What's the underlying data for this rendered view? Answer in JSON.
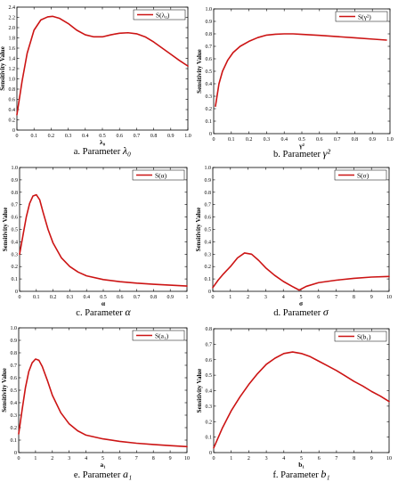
{
  "y_axis_label": "Sensitivity Value",
  "curve_color": "#cc1414",
  "chart_data": [
    {
      "type": "line",
      "caption_prefix": "a. Parameter",
      "caption_symbol": "λ₀",
      "xlabel": "λ₀",
      "legend": "S(λ₀)",
      "xlim": [
        0,
        1
      ],
      "ylim": [
        0,
        2.4
      ],
      "xticks": [
        0,
        0.1,
        0.2,
        0.3,
        0.4,
        0.5,
        0.6,
        0.7,
        0.8,
        0.9,
        1.0
      ],
      "xtick_labels": [
        "0",
        "0.1",
        "0.2",
        "0.3",
        "0.4",
        "0.5",
        "0.6",
        "0.7",
        "0.8",
        "0.9",
        "1.0"
      ],
      "yticks": [
        0,
        0.2,
        0.4,
        0.6,
        0.8,
        1.0,
        1.2,
        1.4,
        1.6,
        1.8,
        2.0,
        2.2,
        2.4
      ],
      "ytick_labels": [
        "0",
        "0.2",
        "0.4",
        "0.6",
        "0.8",
        "1.0",
        "1.2",
        "1.4",
        "1.6",
        "1.8",
        "2.0",
        "2.2",
        "2.4"
      ],
      "series": [
        {
          "x": [
            0.0,
            0.03,
            0.06,
            0.1,
            0.14,
            0.18,
            0.21,
            0.25,
            0.3,
            0.35,
            0.4,
            0.45,
            0.5,
            0.55,
            0.6,
            0.65,
            0.7,
            0.75,
            0.8,
            0.85,
            0.9,
            0.95,
            1.0
          ],
          "y": [
            0.3,
            0.95,
            1.5,
            1.95,
            2.15,
            2.21,
            2.22,
            2.18,
            2.08,
            1.95,
            1.86,
            1.82,
            1.82,
            1.86,
            1.89,
            1.9,
            1.88,
            1.82,
            1.72,
            1.6,
            1.48,
            1.36,
            1.25
          ]
        }
      ]
    },
    {
      "type": "line",
      "caption_prefix": "b. Parameter",
      "caption_symbol": "γ²",
      "xlabel": "γ²",
      "legend": "S(γ²)",
      "xlim": [
        0,
        1
      ],
      "ylim": [
        0,
        1.0
      ],
      "xticks": [
        0,
        0.1,
        0.2,
        0.3,
        0.4,
        0.5,
        0.6,
        0.7,
        0.8,
        0.9,
        1.0
      ],
      "xtick_labels": [
        "0",
        "0.1",
        "0.2",
        "0.3",
        "0.4",
        "0.5",
        "0.6",
        "0.7",
        "0.8",
        "0.9",
        "1.0"
      ],
      "yticks": [
        0,
        0.1,
        0.2,
        0.3,
        0.4,
        0.5,
        0.6,
        0.7,
        0.8,
        0.9,
        1.0
      ],
      "ytick_labels": [
        "0",
        "0.1",
        "0.2",
        "0.3",
        "0.4",
        "0.5",
        "0.6",
        "0.7",
        "0.8",
        "0.9",
        "1.0"
      ],
      "series": [
        {
          "x": [
            0.01,
            0.03,
            0.05,
            0.08,
            0.11,
            0.15,
            0.2,
            0.25,
            0.3,
            0.35,
            0.4,
            0.45,
            0.5,
            0.6,
            0.7,
            0.8,
            0.9,
            0.98
          ],
          "y": [
            0.22,
            0.4,
            0.5,
            0.59,
            0.65,
            0.7,
            0.74,
            0.77,
            0.79,
            0.797,
            0.8,
            0.8,
            0.796,
            0.788,
            0.778,
            0.768,
            0.758,
            0.75
          ]
        }
      ]
    },
    {
      "type": "line",
      "caption_prefix": "c. Parameter",
      "caption_symbol": "α",
      "xlabel": "α",
      "legend": "S(α)",
      "xlim": [
        0,
        1
      ],
      "ylim": [
        0,
        1.0
      ],
      "xticks": [
        0,
        0.1,
        0.2,
        0.3,
        0.4,
        0.5,
        0.6,
        0.7,
        0.8,
        0.9,
        1
      ],
      "xtick_labels": [
        "0",
        "0.1",
        "0.2",
        "0.3",
        "0.4",
        "0.5",
        "0.6",
        "0.7",
        "0.8",
        "0.9",
        "1"
      ],
      "yticks": [
        0,
        0.1,
        0.2,
        0.3,
        0.4,
        0.5,
        0.6,
        0.7,
        0.8,
        0.9,
        1.0
      ],
      "ytick_labels": [
        "0",
        "0.1",
        "0.2",
        "0.3",
        "0.4",
        "0.5",
        "0.6",
        "0.7",
        "0.8",
        "0.9",
        "1.0"
      ],
      "series": [
        {
          "x": [
            0.0,
            0.02,
            0.04,
            0.06,
            0.08,
            0.1,
            0.12,
            0.14,
            0.17,
            0.2,
            0.25,
            0.3,
            0.35,
            0.4,
            0.5,
            0.6,
            0.7,
            0.8,
            0.9,
            1.0
          ],
          "y": [
            0.3,
            0.45,
            0.6,
            0.71,
            0.77,
            0.78,
            0.74,
            0.64,
            0.5,
            0.39,
            0.27,
            0.2,
            0.155,
            0.125,
            0.095,
            0.078,
            0.066,
            0.057,
            0.05,
            0.043
          ]
        }
      ]
    },
    {
      "type": "line",
      "caption_prefix": "d. Parameter",
      "caption_symbol": "σ",
      "xlabel": "σ",
      "legend": "S(σ)",
      "xlim": [
        0,
        10
      ],
      "ylim": [
        0,
        1.0
      ],
      "xticks": [
        0,
        1,
        2,
        3,
        4,
        5,
        6,
        7,
        8,
        9,
        10
      ],
      "xtick_labels": [
        "0",
        "1",
        "2",
        "3",
        "4",
        "5",
        "6",
        "7",
        "8",
        "9",
        "10"
      ],
      "yticks": [
        0,
        0.1,
        0.2,
        0.3,
        0.4,
        0.5,
        0.6,
        0.7,
        0.8,
        0.9,
        1.0
      ],
      "ytick_labels": [
        "0",
        "0.1",
        "0.2",
        "0.3",
        "0.4",
        "0.5",
        "0.6",
        "0.7",
        "0.8",
        "0.9",
        "1.0"
      ],
      "series": [
        {
          "x": [
            0.0,
            0.3,
            0.6,
            1.0,
            1.4,
            1.8,
            2.2,
            2.6,
            3.0,
            3.5,
            4.0,
            4.5,
            4.9,
            5.3,
            6.0,
            7.0,
            8.0,
            9.0,
            10.0
          ],
          "y": [
            0.03,
            0.09,
            0.14,
            0.2,
            0.27,
            0.31,
            0.3,
            0.25,
            0.19,
            0.13,
            0.08,
            0.04,
            0.01,
            0.04,
            0.07,
            0.09,
            0.105,
            0.115,
            0.12
          ]
        }
      ]
    },
    {
      "type": "line",
      "caption_prefix": "e. Parameter",
      "caption_symbol": "a₁",
      "xlabel": "a₁",
      "legend": "S(a₁)",
      "xlim": [
        0,
        10
      ],
      "ylim": [
        0,
        1.0
      ],
      "xticks": [
        0,
        1,
        2,
        3,
        4,
        5,
        6,
        7,
        8,
        9,
        10
      ],
      "xtick_labels": [
        "0",
        "1",
        "2",
        "3",
        "4",
        "5",
        "6",
        "7",
        "8",
        "9",
        "10"
      ],
      "yticks": [
        0,
        0.1,
        0.2,
        0.3,
        0.4,
        0.5,
        0.6,
        0.7,
        0.8,
        0.9,
        1.0
      ],
      "ytick_labels": [
        "0",
        "0.1",
        "0.2",
        "0.3",
        "0.4",
        "0.5",
        "0.6",
        "0.7",
        "0.8",
        "0.9",
        "1.0"
      ],
      "series": [
        {
          "x": [
            0.0,
            0.2,
            0.4,
            0.6,
            0.8,
            1.0,
            1.2,
            1.4,
            1.7,
            2.0,
            2.5,
            3.0,
            3.5,
            4.0,
            5.0,
            6.0,
            7.0,
            8.0,
            9.0,
            10.0
          ],
          "y": [
            0.15,
            0.34,
            0.52,
            0.65,
            0.72,
            0.75,
            0.74,
            0.69,
            0.58,
            0.46,
            0.32,
            0.23,
            0.175,
            0.14,
            0.11,
            0.09,
            0.075,
            0.065,
            0.056,
            0.048
          ]
        }
      ]
    },
    {
      "type": "line",
      "caption_prefix": "f. Parameter",
      "caption_symbol": "b₁",
      "xlabel": "b₁",
      "legend": "S(b₁)",
      "xlim": [
        0,
        10
      ],
      "ylim": [
        0,
        0.8
      ],
      "xticks": [
        0,
        1,
        2,
        3,
        4,
        5,
        6,
        7,
        8,
        9,
        10
      ],
      "xtick_labels": [
        "0",
        "1",
        "2",
        "3",
        "4",
        "5",
        "6",
        "7",
        "8",
        "9",
        "10"
      ],
      "yticks": [
        0,
        0.1,
        0.2,
        0.3,
        0.4,
        0.5,
        0.6,
        0.7,
        0.8
      ],
      "ytick_labels": [
        "0",
        "0.1",
        "0.2",
        "0.3",
        "0.4",
        "0.5",
        "0.6",
        "0.7",
        "0.8"
      ],
      "series": [
        {
          "x": [
            0.0,
            0.5,
            1.0,
            1.5,
            2.0,
            2.5,
            3.0,
            3.5,
            4.0,
            4.5,
            5.0,
            5.5,
            6.0,
            6.5,
            7.0,
            7.5,
            8.0,
            8.5,
            9.0,
            9.5,
            10.0
          ],
          "y": [
            0.03,
            0.16,
            0.27,
            0.36,
            0.44,
            0.51,
            0.57,
            0.61,
            0.64,
            0.65,
            0.64,
            0.62,
            0.59,
            0.56,
            0.53,
            0.495,
            0.46,
            0.43,
            0.395,
            0.365,
            0.33
          ]
        }
      ]
    }
  ]
}
